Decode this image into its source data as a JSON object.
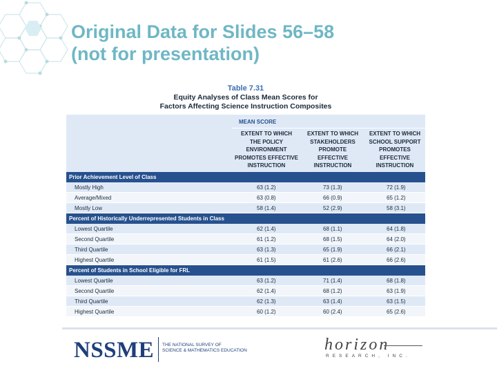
{
  "slide": {
    "title_line1": "Original Data for Slides 56–58",
    "title_line2": "(not for presentation)"
  },
  "table": {
    "number": "Table 7.31",
    "caption_line1": "Equity Analyses of Class Mean Scores for",
    "caption_line2": "Factors Affecting Science Instruction Composites",
    "mean_score_label": "MEAN SCORE",
    "columns": [
      [
        "EXTENT TO WHICH",
        "THE POLICY",
        "ENVIRONMENT",
        "PROMOTES EFFECTIVE",
        "INSTRUCTION"
      ],
      [
        "EXTENT TO WHICH",
        "STAKEHOLDERS",
        "PROMOTE",
        "EFFECTIVE",
        "INSTRUCTION"
      ],
      [
        "EXTENT TO WHICH",
        "SCHOOL SUPPORT",
        "PROMOTES",
        "EFFECTIVE",
        "INSTRUCTION"
      ]
    ],
    "rows": [
      {
        "type": "section",
        "label": "Prior Achievement Level of Class"
      },
      {
        "type": "data",
        "label": "Mostly High",
        "v1": "63  (1.2)",
        "v2": "73  (1.3)",
        "v3": "72  (1.9)"
      },
      {
        "type": "data",
        "label": "Average/Mixed",
        "v1": "63  (0.8)",
        "v2": "66  (0.9)",
        "v3": "65  (1.2)"
      },
      {
        "type": "data",
        "label": "Mostly Low",
        "v1": "58  (1.4)",
        "v2": "52  (2.9)",
        "v3": "58  (3.1)"
      },
      {
        "type": "section",
        "label": "Percent of Historically Underrepresented Students in Class"
      },
      {
        "type": "data",
        "label": "Lowest Quartile",
        "v1": "62  (1.4)",
        "v2": "68  (1.1)",
        "v3": "64  (1.8)"
      },
      {
        "type": "data",
        "label": "Second Quartile",
        "v1": "61  (1.2)",
        "v2": "68  (1.5)",
        "v3": "64  (2.0)"
      },
      {
        "type": "data",
        "label": "Third Quartile",
        "v1": "63  (1.3)",
        "v2": "65  (1.9)",
        "v3": "66  (2.1)"
      },
      {
        "type": "data",
        "label": "Highest Quartile",
        "v1": "61  (1.5)",
        "v2": "61  (2.6)",
        "v3": "66  (2.6)"
      },
      {
        "type": "section",
        "label": "Percent of Students in School Eligible for FRL"
      },
      {
        "type": "data",
        "label": "Lowest Quartile",
        "v1": "63  (1.2)",
        "v2": "71  (1.4)",
        "v3": "68  (1.8)"
      },
      {
        "type": "data",
        "label": "Second Quartile",
        "v1": "62  (1.4)",
        "v2": "68  (1.2)",
        "v3": "63  (1.9)"
      },
      {
        "type": "data",
        "label": "Third Quartile",
        "v1": "62  (1.3)",
        "v2": "63  (1.4)",
        "v3": "63  (1.5)"
      },
      {
        "type": "data",
        "label": "Highest Quartile",
        "v1": "60  (1.2)",
        "v2": "60  (2.4)",
        "v3": "65  (2.6)"
      }
    ]
  },
  "footer": {
    "nssme_logo": "NSSME",
    "nssme_sub_line1": "THE NATIONAL SURVEY OF",
    "nssme_sub_line2": "SCIENCE & MATHEMATICS EDUCATION",
    "horizon_logo": "horizon",
    "horizon_sub": "RESEARCH, INC."
  },
  "colors": {
    "title": "#6fb7c4",
    "section_band": "#27518e",
    "header_band": "#dfe9f6",
    "logo_blue": "#1f3f7a"
  }
}
